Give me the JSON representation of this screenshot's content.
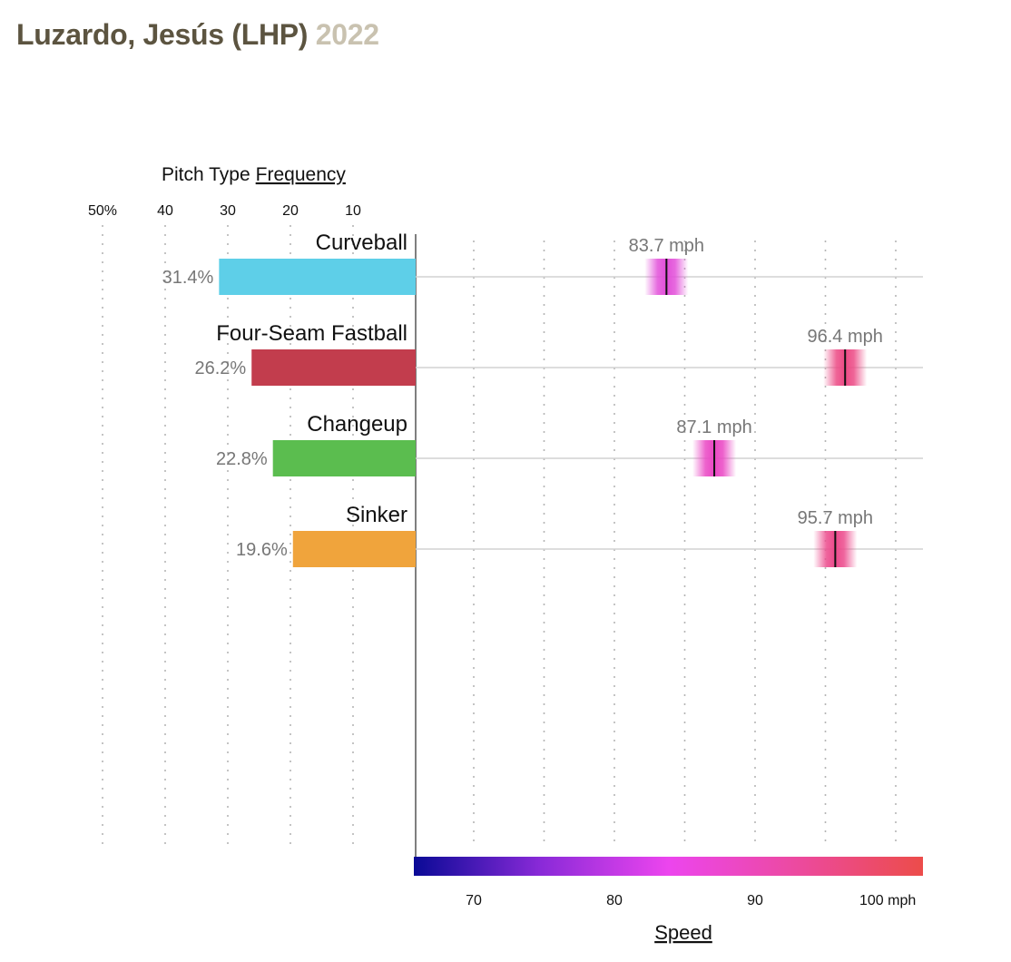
{
  "header": {
    "player": "Luzardo, Jesús (LHP)",
    "year": "2022"
  },
  "chart_data": {
    "type": "bar",
    "frequency_panel": {
      "title_prefix": "Pitch Type",
      "title_link": "Frequency",
      "ticks": [
        {
          "value": 50,
          "label": "50%"
        },
        {
          "value": 40,
          "label": "40"
        },
        {
          "value": 30,
          "label": "30"
        },
        {
          "value": 20,
          "label": "20"
        },
        {
          "value": 10,
          "label": "10"
        }
      ],
      "xlim": [
        0,
        50
      ]
    },
    "speed_panel": {
      "title": "Speed",
      "ticks": [
        {
          "value": 70,
          "label": "70"
        },
        {
          "value": 80,
          "label": "80"
        },
        {
          "value": 90,
          "label": "90"
        },
        {
          "value": 100,
          "label": "100 mph"
        }
      ],
      "minor_ticks": [
        75,
        85,
        95
      ],
      "xlim": [
        65.8,
        102
      ],
      "grid": true
    },
    "pitches": [
      {
        "name": "Curveball",
        "frequency": 31.4,
        "frequency_label": "31.4%",
        "color": "#5ecfe8",
        "speed": 83.7,
        "speed_label": "83.7 mph",
        "speed_color": "#e24fd9"
      },
      {
        "name": "Four-Seam Fastball",
        "frequency": 26.2,
        "frequency_label": "26.2%",
        "color": "#c23d4d",
        "speed": 96.4,
        "speed_label": "96.4 mph",
        "speed_color": "#ec4a85"
      },
      {
        "name": "Changeup",
        "frequency": 22.8,
        "frequency_label": "22.8%",
        "color": "#5bbd4f",
        "speed": 87.1,
        "speed_label": "87.1 mph",
        "speed_color": "#ea47c4"
      },
      {
        "name": "Sinker",
        "frequency": 19.6,
        "frequency_label": "19.6%",
        "color": "#f0a43c",
        "speed": 95.7,
        "speed_label": "95.7 mph",
        "speed_color": "#ec4a8c"
      }
    ],
    "speed_scale": {
      "colors": [
        "#0a0a96",
        "#8a2ad8",
        "#ec45ee",
        "#ec4aa0",
        "#ec4c4a"
      ]
    }
  }
}
